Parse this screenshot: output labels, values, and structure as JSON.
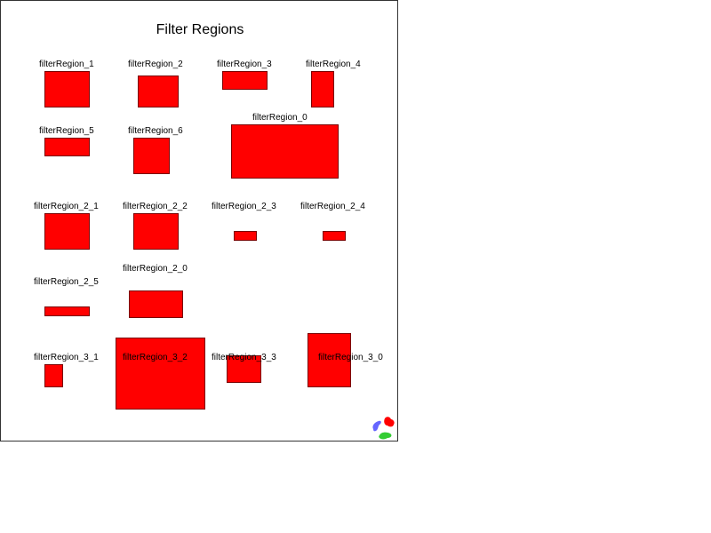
{
  "title": "Filter Regions",
  "fill_color": "#ff0000",
  "labels": {
    "r1": "filterRegion_1",
    "r2": "filterRegion_2",
    "r3": "filterRegion_3",
    "r4": "filterRegion_4",
    "r5": "filterRegion_5",
    "r6": "filterRegion_6",
    "r0": "filterRegion_0",
    "r2_1": "filterRegion_2_1",
    "r2_2": "filterRegion_2_2",
    "r2_3": "filterRegion_2_3",
    "r2_4": "filterRegion_2_4",
    "r2_5": "filterRegion_2_5",
    "r2_0": "filterRegion_2_0",
    "r3_1": "filterRegion_3_1",
    "r3_2": "filterRegion_3_2",
    "r3_3": "filterRegion_3_3",
    "r3_0": "filterRegion_3_0"
  },
  "logo": {
    "icon": "three-color-logo-icon"
  }
}
